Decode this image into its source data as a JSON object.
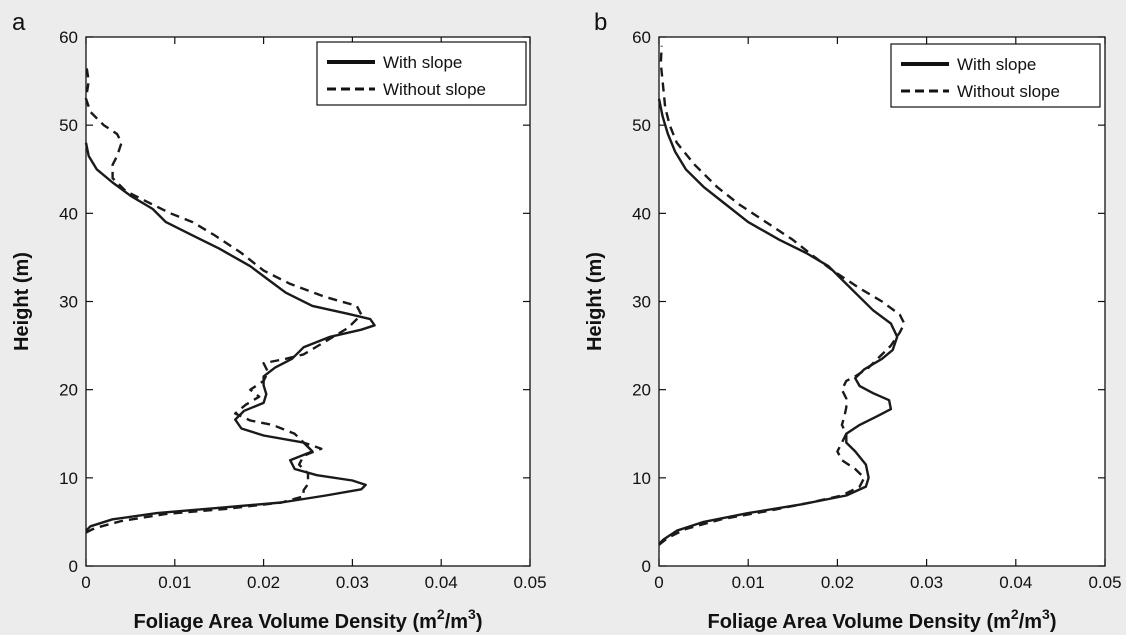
{
  "chart_data": [
    {
      "type": "line",
      "panel_label": "a",
      "xlabel": "Foliage Area Volume Density (m²/m³)",
      "xlabel_main": "Foliage Area Volume Density (m",
      "xlabel_sup1": "2",
      "xlabel_mid": "/m",
      "xlabel_sup2": "3",
      "xlabel_end": ")",
      "ylabel": "Height (m)",
      "xlim": [
        0,
        0.05
      ],
      "ylim": [
        0,
        60
      ],
      "xticks": [
        "0",
        "0.01",
        "0.02",
        "0.03",
        "0.04",
        "0.05"
      ],
      "yticks": [
        "0",
        "10",
        "20",
        "30",
        "40",
        "50",
        "60"
      ],
      "legend_position": "top-right",
      "grid": false,
      "series": [
        {
          "name": "With slope",
          "style": "solid",
          "points": [
            [
              0,
              4
            ],
            [
              0.0005,
              4.5
            ],
            [
              0.003,
              5.3
            ],
            [
              0.008,
              6
            ],
            [
              0.015,
              6.6
            ],
            [
              0.022,
              7.2
            ],
            [
              0.027,
              8
            ],
            [
              0.031,
              8.7
            ],
            [
              0.0315,
              9.2
            ],
            [
              0.03,
              9.7
            ],
            [
              0.026,
              10.3
            ],
            [
              0.0235,
              11
            ],
            [
              0.023,
              12
            ],
            [
              0.0255,
              13
            ],
            [
              0.0245,
              14
            ],
            [
              0.02,
              14.8
            ],
            [
              0.0175,
              15.6
            ],
            [
              0.0168,
              16.6
            ],
            [
              0.0178,
              17.6
            ],
            [
              0.02,
              18.5
            ],
            [
              0.0203,
              19.5
            ],
            [
              0.02,
              20.5
            ],
            [
              0.02,
              21.5
            ],
            [
              0.0213,
              22.5
            ],
            [
              0.0232,
              23.5
            ],
            [
              0.0245,
              24.8
            ],
            [
              0.0275,
              26
            ],
            [
              0.031,
              26.8
            ],
            [
              0.0325,
              27.3
            ],
            [
              0.032,
              28
            ],
            [
              0.0295,
              28.6
            ],
            [
              0.0255,
              29.5
            ],
            [
              0.0225,
              31
            ],
            [
              0.0205,
              32.5
            ],
            [
              0.0185,
              34
            ],
            [
              0.015,
              36
            ],
            [
              0.012,
              37.5
            ],
            [
              0.009,
              39
            ],
            [
              0.0075,
              40.5
            ],
            [
              0.005,
              42
            ],
            [
              0.003,
              43.5
            ],
            [
              0.0012,
              45
            ],
            [
              0.0003,
              46.5
            ],
            [
              0,
              48
            ]
          ]
        },
        {
          "name": "Without slope",
          "style": "dashed",
          "points": [
            [
              0,
              3.8
            ],
            [
              0.001,
              4.3
            ],
            [
              0.004,
              5.1
            ],
            [
              0.009,
              5.9
            ],
            [
              0.016,
              6.5
            ],
            [
              0.022,
              7.2
            ],
            [
              0.0245,
              7.9
            ],
            [
              0.0245,
              8.6
            ],
            [
              0.025,
              9.3
            ],
            [
              0.025,
              10.5
            ],
            [
              0.024,
              11.5
            ],
            [
              0.0245,
              12.5
            ],
            [
              0.0265,
              13.3
            ],
            [
              0.0245,
              14
            ],
            [
              0.0235,
              15
            ],
            [
              0.021,
              16
            ],
            [
              0.0185,
              16.5
            ],
            [
              0.0168,
              17.3
            ],
            [
              0.018,
              18.3
            ],
            [
              0.0195,
              19.2
            ],
            [
              0.0185,
              20
            ],
            [
              0.02,
              21
            ],
            [
              0.0205,
              22
            ],
            [
              0.02,
              23
            ],
            [
              0.0225,
              23.5
            ],
            [
              0.0245,
              24
            ],
            [
              0.027,
              25.5
            ],
            [
              0.0295,
              27
            ],
            [
              0.031,
              28.5
            ],
            [
              0.0305,
              29.5
            ],
            [
              0.027,
              30.5
            ],
            [
              0.023,
              32
            ],
            [
              0.02,
              33.5
            ],
            [
              0.0175,
              35.5
            ],
            [
              0.0145,
              37.5
            ],
            [
              0.012,
              39
            ],
            [
              0.0095,
              40
            ],
            [
              0.0065,
              41.5
            ],
            [
              0.0045,
              42.5
            ],
            [
              0.003,
              44
            ],
            [
              0.003,
              45.5
            ],
            [
              0.0035,
              46.5
            ],
            [
              0.004,
              48
            ],
            [
              0.0035,
              49
            ],
            [
              0.002,
              50
            ],
            [
              0.0005,
              51.5
            ],
            [
              0,
              53
            ],
            [
              0.0003,
              55
            ],
            [
              0,
              57
            ]
          ]
        }
      ]
    },
    {
      "type": "line",
      "panel_label": "b",
      "xlabel": "Foliage Area Volume Density (m²/m³)",
      "xlabel_main": "Foliage Area Volume Density (m",
      "xlabel_sup1": "2",
      "xlabel_mid": "/m",
      "xlabel_sup2": "3",
      "xlabel_end": ")",
      "ylabel": "Height (m)",
      "xlim": [
        0,
        0.05
      ],
      "ylim": [
        0,
        60
      ],
      "xticks": [
        "0",
        "0.01",
        "0.02",
        "0.03",
        "0.04",
        "0.05"
      ],
      "yticks": [
        "0",
        "10",
        "20",
        "30",
        "40",
        "50",
        "60"
      ],
      "legend_position": "top-right",
      "grid": false,
      "series": [
        {
          "name": "With slope",
          "style": "solid",
          "points": [
            [
              0,
              2.5
            ],
            [
              0.0005,
              3
            ],
            [
              0.002,
              4
            ],
            [
              0.005,
              5
            ],
            [
              0.01,
              6
            ],
            [
              0.016,
              7
            ],
            [
              0.021,
              8
            ],
            [
              0.0232,
              9
            ],
            [
              0.0235,
              10
            ],
            [
              0.0232,
              11.5
            ],
            [
              0.022,
              13
            ],
            [
              0.021,
              14
            ],
            [
              0.021,
              15
            ],
            [
              0.0225,
              16
            ],
            [
              0.0245,
              17
            ],
            [
              0.026,
              17.8
            ],
            [
              0.0258,
              18.8
            ],
            [
              0.024,
              19.6
            ],
            [
              0.0225,
              20.4
            ],
            [
              0.022,
              21.3
            ],
            [
              0.023,
              22.3
            ],
            [
              0.025,
              23.5
            ],
            [
              0.0262,
              24.5
            ],
            [
              0.0267,
              26
            ],
            [
              0.026,
              27.5
            ],
            [
              0.024,
              29
            ],
            [
              0.022,
              31
            ],
            [
              0.0205,
              32.5
            ],
            [
              0.019,
              34
            ],
            [
              0.0165,
              35.5
            ],
            [
              0.0135,
              37
            ],
            [
              0.01,
              39
            ],
            [
              0.0075,
              41
            ],
            [
              0.005,
              43
            ],
            [
              0.003,
              45
            ],
            [
              0.0018,
              47
            ],
            [
              0.001,
              49
            ],
            [
              0.0004,
              51
            ],
            [
              0,
              53
            ]
          ]
        },
        {
          "name": "Without slope",
          "style": "dashed",
          "points": [
            [
              0,
              2.4
            ],
            [
              0.001,
              3.2
            ],
            [
              0.003,
              4.2
            ],
            [
              0.007,
              5.3
            ],
            [
              0.012,
              6.2
            ],
            [
              0.017,
              7.2
            ],
            [
              0.0205,
              8
            ],
            [
              0.0225,
              9
            ],
            [
              0.023,
              10
            ],
            [
              0.022,
              11
            ],
            [
              0.0205,
              12
            ],
            [
              0.02,
              13
            ],
            [
              0.0205,
              14
            ],
            [
              0.021,
              15
            ],
            [
              0.0205,
              16
            ],
            [
              0.0208,
              17
            ],
            [
              0.021,
              18
            ],
            [
              0.021,
              19
            ],
            [
              0.0205,
              20
            ],
            [
              0.021,
              21
            ],
            [
              0.022,
              21.5
            ],
            [
              0.0235,
              22.5
            ],
            [
              0.025,
              24
            ],
            [
              0.026,
              25
            ],
            [
              0.027,
              26.5
            ],
            [
              0.0275,
              27.5
            ],
            [
              0.027,
              28.5
            ],
            [
              0.025,
              30
            ],
            [
              0.0225,
              31.5
            ],
            [
              0.021,
              32.5
            ],
            [
              0.0195,
              33.5
            ],
            [
              0.0175,
              35
            ],
            [
              0.015,
              37
            ],
            [
              0.012,
              39
            ],
            [
              0.009,
              41
            ],
            [
              0.0065,
              43
            ],
            [
              0.004,
              45.5
            ],
            [
              0.002,
              48
            ],
            [
              0.0012,
              50
            ],
            [
              0.0007,
              52
            ],
            [
              0.0004,
              55
            ],
            [
              0.0002,
              57
            ],
            [
              0.0003,
              59
            ]
          ]
        }
      ]
    }
  ]
}
